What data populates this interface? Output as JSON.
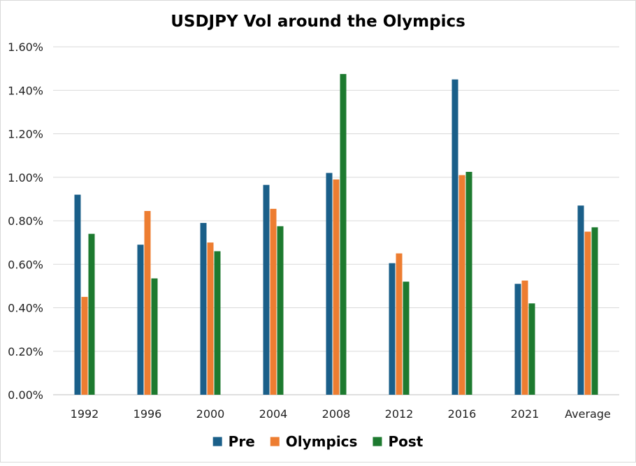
{
  "chart_data": {
    "type": "bar",
    "title": "USDJPY Vol around the Olympics",
    "categories": [
      "1992",
      "1996",
      "2000",
      "2004",
      "2008",
      "2012",
      "2016",
      "2021",
      "Average"
    ],
    "series": [
      {
        "name": "Pre",
        "color": "#1a5f89",
        "values": [
          0.92,
          0.69,
          0.79,
          0.965,
          1.02,
          0.605,
          1.45,
          0.51,
          0.87
        ]
      },
      {
        "name": "Olympics",
        "color": "#ed7d31",
        "values": [
          0.45,
          0.845,
          0.7,
          0.855,
          0.99,
          0.65,
          1.01,
          0.525,
          0.75
        ]
      },
      {
        "name": "Post",
        "color": "#1d7a2f",
        "values": [
          0.74,
          0.535,
          0.66,
          0.775,
          1.475,
          0.52,
          1.025,
          0.42,
          0.77
        ]
      }
    ],
    "y_tick_labels": [
      "0.00%",
      "0.20%",
      "0.40%",
      "0.60%",
      "0.80%",
      "1.00%",
      "1.20%",
      "1.40%",
      "1.60%"
    ],
    "y_ticks": [
      0,
      0.2,
      0.4,
      0.6,
      0.8,
      1.0,
      1.2,
      1.4,
      1.6
    ],
    "ylim": [
      0,
      1.6
    ],
    "y_unit": "%",
    "grid": true,
    "gridline_color": "#d9d9d9",
    "legend_position": "bottom"
  }
}
